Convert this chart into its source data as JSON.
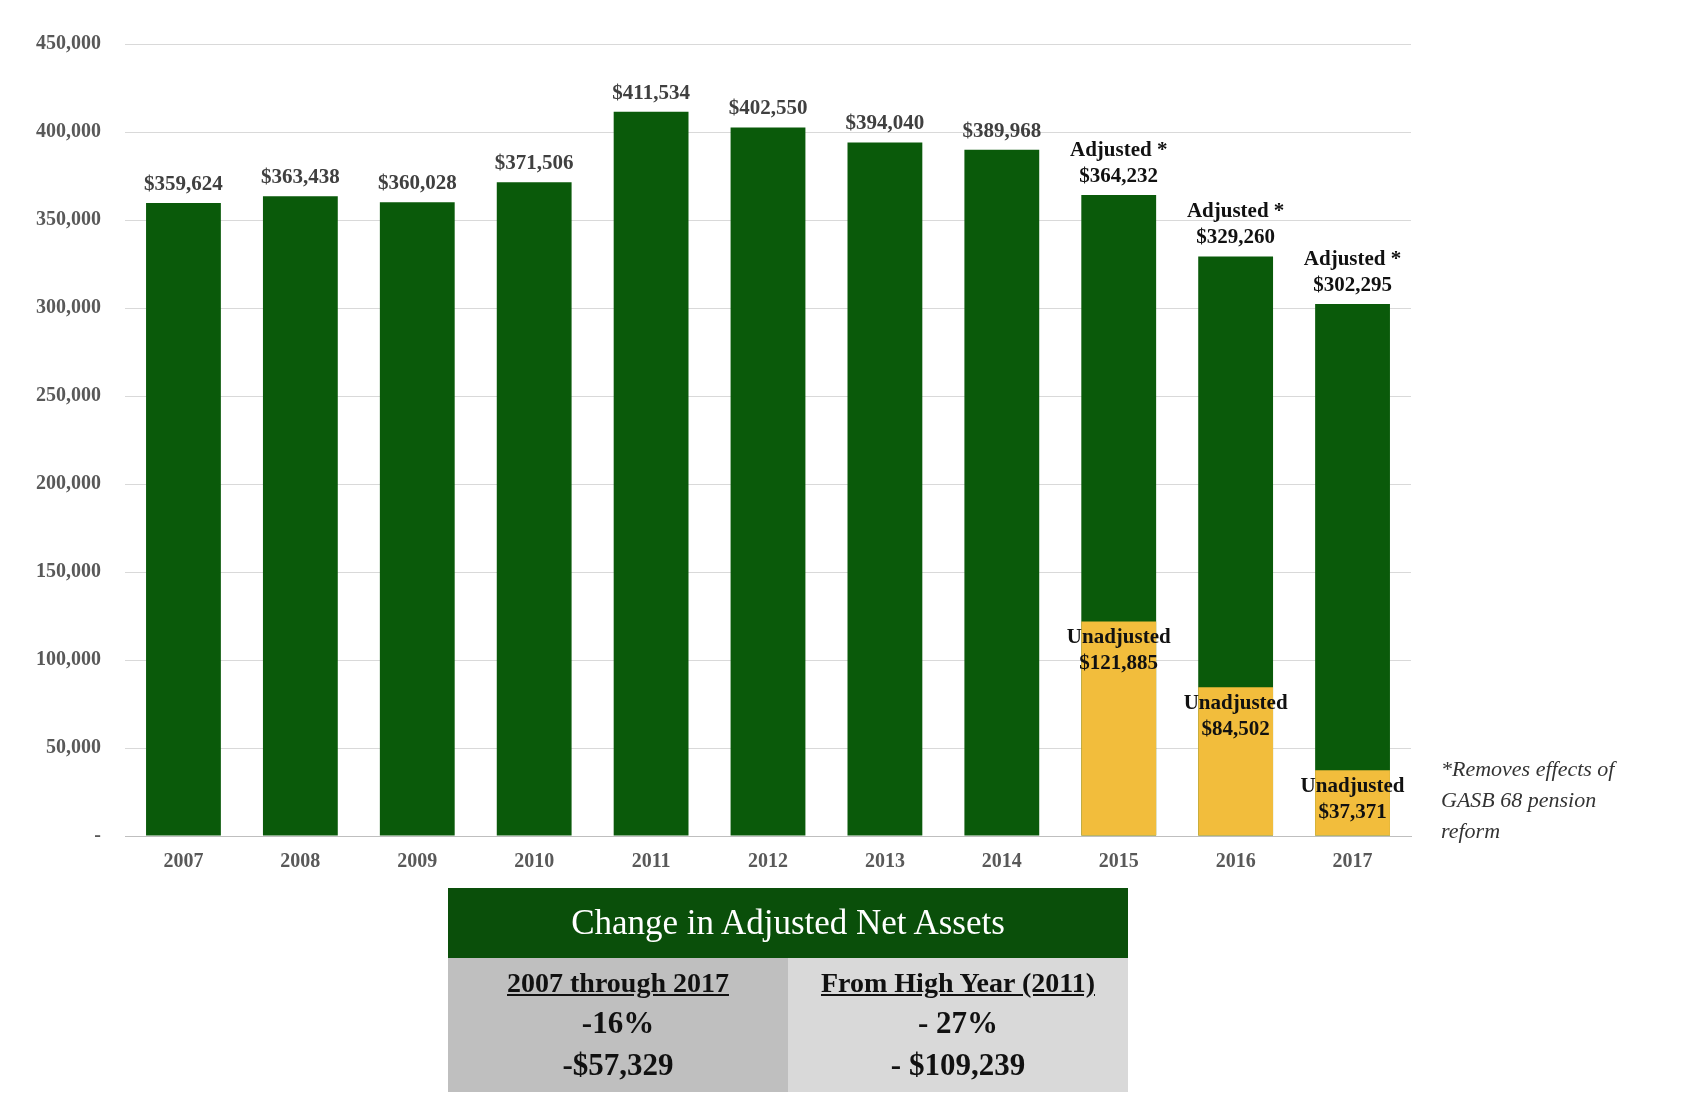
{
  "chart_data": [
    {
      "type": "bar",
      "categories": [
        "2007",
        "2008",
        "2009",
        "2010",
        "2011",
        "2012",
        "2013",
        "2014",
        "2015",
        "2016",
        "2017"
      ],
      "series": [
        {
          "name": "Adjusted *",
          "color": "#0a5a0a",
          "values": [
            359624,
            363438,
            360028,
            371506,
            411534,
            402550,
            394040,
            389968,
            364232,
            329260,
            302295
          ],
          "value_labels": [
            "$359,624",
            "$363,438",
            "$360,028",
            "$371,506",
            "$411,534",
            "$402,550",
            "$394,040",
            "$389,968",
            "$364,232",
            "$329,260",
            "$302,295"
          ]
        },
        {
          "name": "Unadjusted",
          "color": "#f2bd3c",
          "values": [
            null,
            null,
            null,
            null,
            null,
            null,
            null,
            null,
            121885,
            84502,
            37371
          ],
          "value_labels": [
            null,
            null,
            null,
            null,
            null,
            null,
            null,
            null,
            "$121,885",
            "$84,502",
            "$37,371"
          ]
        }
      ],
      "ylim": [
        0,
        450000
      ],
      "yticks": [
        {
          "value": 0,
          "label": "-"
        },
        {
          "value": 50000,
          "label": "50,000"
        },
        {
          "value": 100000,
          "label": "100,000"
        },
        {
          "value": 150000,
          "label": "150,000"
        },
        {
          "value": 200000,
          "label": "200,000"
        },
        {
          "value": 250000,
          "label": "250,000"
        },
        {
          "value": 300000,
          "label": "300,000"
        },
        {
          "value": 350000,
          "label": "350,000"
        },
        {
          "value": 400000,
          "label": "400,000"
        },
        {
          "value": 450000,
          "label": "450,000"
        }
      ],
      "grid": "y",
      "legend": false,
      "annotations": [
        "*Removes effects of GASB 68 pension reform"
      ]
    },
    {
      "type": "other",
      "title": "Change in Adjusted Net Assets",
      "annotations": [
        "2007 through 2017",
        "-16%",
        "-$57,329",
        "From High Year (2011)",
        "- 27%",
        "- $109,239"
      ]
    }
  ]
}
